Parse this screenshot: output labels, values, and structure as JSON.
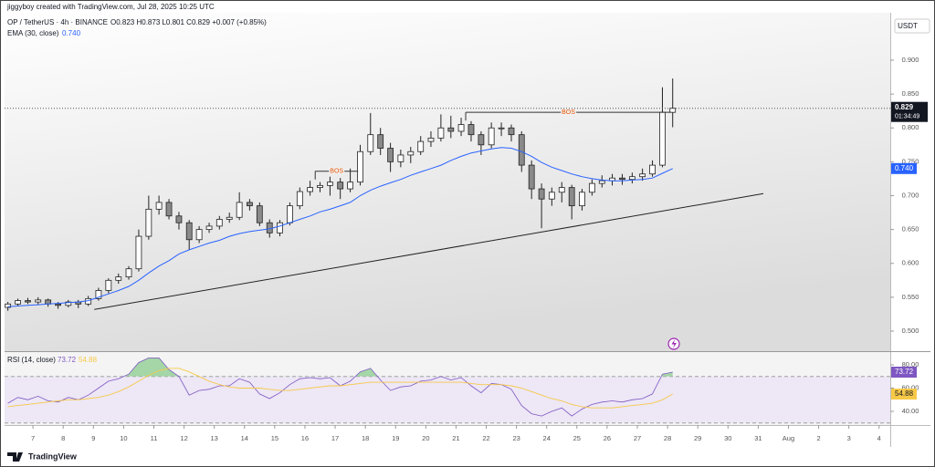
{
  "header": {
    "credit": "jiggyboy created with TradingView.com, Jul 28, 2025 10:25 UTC"
  },
  "footer": {
    "brand": "TradingView"
  },
  "chart_data": [
    {
      "type": "candlestick",
      "title": "OP / TetherUS · 4h · BINANCE",
      "ohlc_legend": "O0.823 H0.873 L0.801 C0.829 +0.007 (+0.85%)",
      "currency": "USDT",
      "last_price_label": "0.829",
      "countdown": "01:34:49",
      "up_color": "#ffffff",
      "down_color": "#8a8a8a",
      "outline_color": "#222222",
      "x": [
        6.17,
        6.5,
        6.83,
        7.17,
        7.5,
        7.83,
        8.17,
        8.5,
        8.83,
        9.17,
        9.5,
        9.83,
        10.17,
        10.5,
        10.83,
        11.17,
        11.5,
        11.83,
        12.17,
        12.5,
        12.83,
        13.17,
        13.5,
        13.83,
        14.17,
        14.5,
        14.83,
        15.17,
        15.5,
        15.83,
        16.17,
        16.5,
        16.83,
        17.17,
        17.5,
        17.83,
        18.17,
        18.5,
        18.83,
        19.17,
        19.5,
        19.83,
        20.17,
        20.5,
        20.83,
        21.17,
        21.5,
        21.83,
        22.17,
        22.5,
        22.83,
        23.17,
        23.5,
        23.83,
        24.17,
        24.5,
        24.83,
        25.17,
        25.5,
        25.83,
        26.17,
        26.5,
        26.83,
        27.17,
        27.5,
        27.83,
        28.17
      ],
      "open": [
        0.535,
        0.54,
        0.545,
        0.543,
        0.546,
        0.54,
        0.538,
        0.543,
        0.54,
        0.548,
        0.56,
        0.575,
        0.58,
        0.592,
        0.64,
        0.68,
        0.69,
        0.67,
        0.66,
        0.635,
        0.65,
        0.655,
        0.665,
        0.668,
        0.69,
        0.685,
        0.66,
        0.645,
        0.66,
        0.685,
        0.706,
        0.712,
        0.715,
        0.72,
        0.71,
        0.72,
        0.765,
        0.79,
        0.77,
        0.75,
        0.76,
        0.765,
        0.78,
        0.785,
        0.8,
        0.795,
        0.805,
        0.79,
        0.775,
        0.8,
        0.8,
        0.79,
        0.745,
        0.71,
        0.695,
        0.705,
        0.712,
        0.685,
        0.705,
        0.718,
        0.722,
        0.726,
        0.724,
        0.728,
        0.732,
        0.745,
        0.823
      ],
      "high": [
        0.543,
        0.548,
        0.549,
        0.55,
        0.548,
        0.543,
        0.546,
        0.546,
        0.552,
        0.564,
        0.578,
        0.585,
        0.596,
        0.65,
        0.7,
        0.7,
        0.695,
        0.676,
        0.664,
        0.655,
        0.66,
        0.67,
        0.675,
        0.705,
        0.695,
        0.69,
        0.665,
        0.664,
        0.69,
        0.712,
        0.722,
        0.72,
        0.728,
        0.726,
        0.74,
        0.775,
        0.822,
        0.8,
        0.778,
        0.768,
        0.772,
        0.788,
        0.795,
        0.82,
        0.818,
        0.815,
        0.81,
        0.795,
        0.808,
        0.808,
        0.805,
        0.795,
        0.752,
        0.718,
        0.712,
        0.72,
        0.716,
        0.71,
        0.724,
        0.73,
        0.732,
        0.732,
        0.734,
        0.74,
        0.752,
        0.86,
        0.873
      ],
      "low": [
        0.53,
        0.537,
        0.54,
        0.539,
        0.536,
        0.533,
        0.535,
        0.534,
        0.537,
        0.545,
        0.556,
        0.57,
        0.576,
        0.588,
        0.635,
        0.672,
        0.665,
        0.65,
        0.62,
        0.63,
        0.645,
        0.65,
        0.66,
        0.664,
        0.678,
        0.655,
        0.638,
        0.64,
        0.656,
        0.68,
        0.7,
        0.705,
        0.7,
        0.695,
        0.705,
        0.715,
        0.76,
        0.76,
        0.735,
        0.742,
        0.748,
        0.76,
        0.772,
        0.78,
        0.785,
        0.788,
        0.78,
        0.76,
        0.77,
        0.788,
        0.78,
        0.735,
        0.695,
        0.652,
        0.685,
        0.69,
        0.665,
        0.678,
        0.7,
        0.712,
        0.715,
        0.716,
        0.718,
        0.722,
        0.728,
        0.742,
        0.801
      ],
      "close": [
        0.54,
        0.545,
        0.543,
        0.546,
        0.54,
        0.538,
        0.543,
        0.54,
        0.548,
        0.56,
        0.575,
        0.58,
        0.592,
        0.64,
        0.68,
        0.69,
        0.67,
        0.66,
        0.635,
        0.65,
        0.655,
        0.665,
        0.668,
        0.69,
        0.685,
        0.66,
        0.645,
        0.66,
        0.685,
        0.706,
        0.712,
        0.715,
        0.72,
        0.71,
        0.72,
        0.765,
        0.79,
        0.77,
        0.75,
        0.76,
        0.765,
        0.78,
        0.785,
        0.8,
        0.795,
        0.805,
        0.79,
        0.775,
        0.8,
        0.8,
        0.79,
        0.745,
        0.71,
        0.695,
        0.705,
        0.712,
        0.685,
        0.705,
        0.718,
        0.722,
        0.726,
        0.724,
        0.728,
        0.732,
        0.745,
        0.823,
        0.829
      ],
      "series": [
        {
          "name": "EMA (30, close)",
          "color": "#2962ff",
          "legend_value": "0.740",
          "values": [
            0.536,
            0.537,
            0.538,
            0.539,
            0.54,
            0.541,
            0.542,
            0.543,
            0.545,
            0.55,
            0.555,
            0.56,
            0.566,
            0.575,
            0.586,
            0.596,
            0.604,
            0.614,
            0.62,
            0.625,
            0.63,
            0.634,
            0.64,
            0.644,
            0.647,
            0.649,
            0.651,
            0.655,
            0.66,
            0.665,
            0.67,
            0.676,
            0.68,
            0.685,
            0.69,
            0.7,
            0.708,
            0.714,
            0.719,
            0.724,
            0.73,
            0.735,
            0.74,
            0.745,
            0.752,
            0.758,
            0.763,
            0.766,
            0.769,
            0.771,
            0.77,
            0.765,
            0.758,
            0.749,
            0.742,
            0.737,
            0.732,
            0.728,
            0.725,
            0.723,
            0.722,
            0.722,
            0.723,
            0.724,
            0.726,
            0.733,
            0.74
          ]
        }
      ],
      "trendline": {
        "x": [
          9.03,
          31.17
        ],
        "y": [
          0.532,
          0.703
        ]
      },
      "annotations": [
        {
          "text": "BOS",
          "y": 0.736,
          "x": [
            16.34,
            17.76
          ]
        },
        {
          "text": "BOS",
          "y": 0.823,
          "x": [
            21.32,
            28.12
          ]
        }
      ],
      "xlim": [
        6.06,
        35.37
      ],
      "xticks": [
        7,
        8,
        9,
        10,
        11,
        12,
        13,
        14,
        15,
        16,
        17,
        18,
        19,
        20,
        21,
        22,
        23,
        24,
        25,
        26,
        27,
        28,
        29,
        30,
        31,
        {
          "value": 32,
          "label": "Aug"
        },
        {
          "value": 33,
          "label": "2"
        },
        {
          "value": 34,
          "label": "3"
        },
        {
          "value": 35,
          "label": "4"
        }
      ],
      "ylim": [
        0.4704,
        0.97
      ],
      "yticks": [
        {
          "value": 0.9,
          "label": "0.900"
        },
        {
          "value": 0.85,
          "label": "0.850"
        },
        {
          "value": 0.8,
          "label": "0.800"
        },
        {
          "value": 0.75,
          "label": "0.750"
        },
        {
          "value": 0.7,
          "label": "0.700"
        },
        {
          "value": 0.65,
          "label": "0.650"
        },
        {
          "value": 0.6,
          "label": "0.600"
        },
        {
          "value": 0.55,
          "label": "0.550"
        },
        {
          "value": 0.5,
          "label": "0.500"
        }
      ]
    },
    {
      "type": "line",
      "x": [
        6.17,
        6.5,
        6.83,
        7.17,
        7.5,
        7.83,
        8.17,
        8.5,
        8.83,
        9.17,
        9.5,
        9.83,
        10.17,
        10.5,
        10.83,
        11.17,
        11.5,
        11.83,
        12.17,
        12.5,
        12.83,
        13.17,
        13.5,
        13.83,
        14.17,
        14.5,
        14.83,
        15.17,
        15.5,
        15.83,
        16.17,
        16.5,
        16.83,
        17.17,
        17.5,
        17.83,
        18.17,
        18.5,
        18.83,
        19.17,
        19.5,
        19.83,
        20.17,
        20.5,
        20.83,
        21.17,
        21.5,
        21.83,
        22.17,
        22.5,
        22.83,
        23.17,
        23.5,
        23.83,
        24.17,
        24.5,
        24.83,
        25.17,
        25.5,
        25.83,
        26.17,
        26.5,
        26.83,
        27.17,
        27.5,
        27.83,
        28.17
      ],
      "series": [
        {
          "name": "RSI (14, close)",
          "color": "#7e57c2",
          "values": [
            47,
            52,
            50,
            53,
            49,
            48,
            52,
            50,
            54,
            60,
            66,
            68,
            72,
            82,
            86,
            86,
            76,
            70,
            54,
            58,
            59,
            62,
            62,
            68,
            65,
            55,
            51,
            56,
            63,
            68,
            69,
            68,
            69,
            62,
            66,
            74,
            77,
            67,
            58,
            61,
            62,
            66,
            67,
            70,
            67,
            69,
            62,
            56,
            64,
            63,
            59,
            45,
            38,
            36,
            40,
            43,
            36,
            42,
            46,
            48,
            49,
            48,
            50,
            51,
            55,
            72,
            73.72
          ]
        },
        {
          "color": "#f7c948",
          "values": [
            44,
            45,
            46,
            47,
            48,
            49,
            50,
            50,
            51,
            52,
            54,
            57,
            61,
            66,
            71,
            75,
            77,
            77,
            74,
            70,
            66,
            63,
            61,
            60,
            60,
            60,
            59,
            58,
            58,
            59,
            60,
            61,
            62,
            62,
            63,
            64,
            65,
            65,
            65,
            65,
            65,
            65,
            65,
            65,
            65,
            65,
            64,
            63,
            63,
            63,
            62,
            60,
            57,
            54,
            51,
            49,
            46,
            44,
            43,
            43,
            43,
            44,
            45,
            46,
            47,
            50,
            54.88
          ]
        }
      ],
      "bands": [
        30,
        70
      ],
      "band_color": "#ede7f6",
      "overbought_color": "#a5d6a7",
      "xlim": [
        6.06,
        35.37
      ],
      "ylim": [
        28.24,
        90.98
      ],
      "yticks": [
        {
          "value": 80,
          "label": "80.00"
        },
        {
          "value": 60,
          "label": "60.00"
        },
        {
          "value": 40,
          "label": "40.00"
        }
      ]
    }
  ]
}
